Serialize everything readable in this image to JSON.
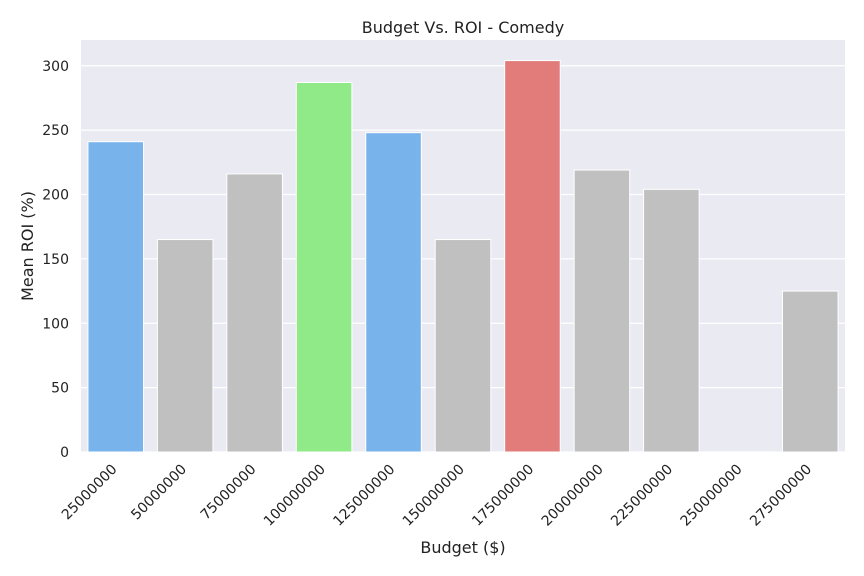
{
  "chart_data": {
    "type": "bar",
    "title": "Budget Vs. ROI - Comedy",
    "xlabel": "Budget ($)",
    "ylabel": "Mean ROI (%)",
    "categories": [
      "25000000",
      "50000000",
      "75000000",
      "100000000",
      "125000000",
      "150000000",
      "175000000",
      "200000000",
      "225000000",
      "250000000",
      "275000000"
    ],
    "values": [
      241,
      165,
      216,
      287,
      248,
      165,
      304,
      219,
      204,
      0,
      125
    ],
    "bar_colors": [
      "#79b3ec",
      "#c0c0c0",
      "#c0c0c0",
      "#90ea88",
      "#79b3ec",
      "#c0c0c0",
      "#e27c7a",
      "#c0c0c0",
      "#c0c0c0",
      "#c0c0c0",
      "#c0c0c0"
    ],
    "ylim": [
      0,
      320
    ],
    "yticks": [
      0,
      50,
      100,
      150,
      200,
      250,
      300
    ],
    "grid": true,
    "background_color": "#eaeaf2",
    "grid_color": "#ffffff"
  }
}
